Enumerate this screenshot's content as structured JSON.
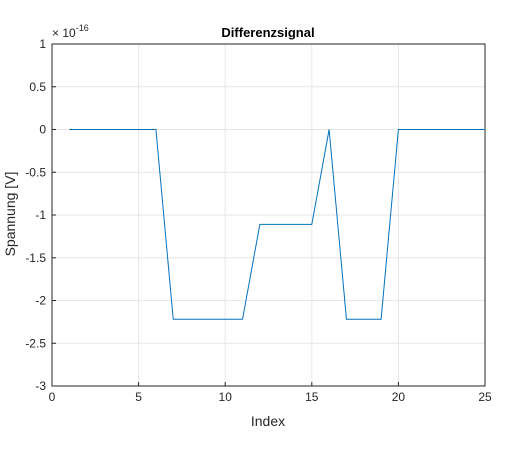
{
  "chart_data": {
    "type": "line",
    "title": "Differenzsignal",
    "xlabel": "Index",
    "ylabel": "Spannung [V]",
    "exponent_label": {
      "base": "× 10",
      "power": "-16"
    },
    "xlim": [
      0,
      25
    ],
    "ylim": [
      -3,
      1
    ],
    "xticks": [
      0,
      5,
      10,
      15,
      20,
      25
    ],
    "yticks": [
      1,
      0.5,
      0,
      -0.5,
      -1,
      -1.5,
      -2,
      -2.5,
      -3
    ],
    "grid": true,
    "series": [
      {
        "name": "Differenzsignal",
        "color": "#0072bd",
        "x": [
          1,
          2,
          3,
          4,
          5,
          6,
          7,
          8,
          9,
          10,
          11,
          12,
          13,
          14,
          15,
          16,
          17,
          18,
          19,
          20,
          21,
          22,
          23,
          24,
          25
        ],
        "y": [
          0,
          0,
          0,
          0,
          0,
          0,
          -2.22,
          -2.22,
          -2.22,
          -2.22,
          -2.22,
          -1.11,
          -1.11,
          -1.11,
          -1.11,
          0,
          -2.22,
          -2.22,
          -2.22,
          0,
          0,
          0,
          0,
          0,
          0
        ]
      }
    ]
  }
}
